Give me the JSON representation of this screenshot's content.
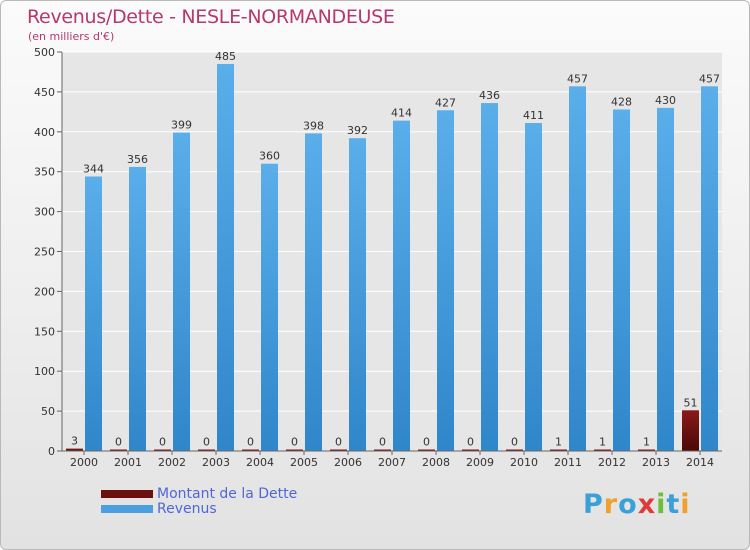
{
  "header": {
    "title": "Revenus/Dette - NESLE-NORMANDEUSE",
    "subtitle": "(en milliers d'€)"
  },
  "legend": {
    "debt_label": "Montant de la Dette",
    "revenue_label": "Revenus"
  },
  "logo": {
    "letters": [
      "P",
      "r",
      "o",
      "x",
      "i",
      "t",
      "i"
    ],
    "colors": [
      "#3aa0d8",
      "#f0a030",
      "#3aa0d8",
      "#e03a3a",
      "#6cbf3a",
      "#3aa0d8",
      "#f0a030"
    ]
  },
  "colors": {
    "debt": "#6b0f0f",
    "revenue": "#4a9fe0",
    "title": "#b5386e",
    "grid": "#ffffff"
  },
  "chart_data": {
    "type": "bar",
    "title": "Revenus/Dette - NESLE-NORMANDEUSE",
    "subtitle": "(en milliers d'€)",
    "xlabel": "",
    "ylabel": "",
    "ylim": [
      0,
      500
    ],
    "yticks": [
      0,
      50,
      100,
      150,
      200,
      250,
      300,
      350,
      400,
      450,
      500
    ],
    "grid": true,
    "legend_position": "bottom-left",
    "categories": [
      "2000",
      "2001",
      "2002",
      "2003",
      "2004",
      "2005",
      "2006",
      "2007",
      "2008",
      "2009",
      "2010",
      "2011",
      "2012",
      "2013",
      "2014"
    ],
    "series": [
      {
        "name": "Montant de la Dette",
        "values": [
          3,
          0,
          0,
          0,
          0,
          0,
          0,
          0,
          0,
          0,
          0,
          1,
          1,
          1,
          51
        ]
      },
      {
        "name": "Revenus",
        "values": [
          344,
          356,
          399,
          485,
          360,
          398,
          392,
          414,
          427,
          436,
          411,
          457,
          428,
          430,
          457
        ]
      }
    ]
  }
}
